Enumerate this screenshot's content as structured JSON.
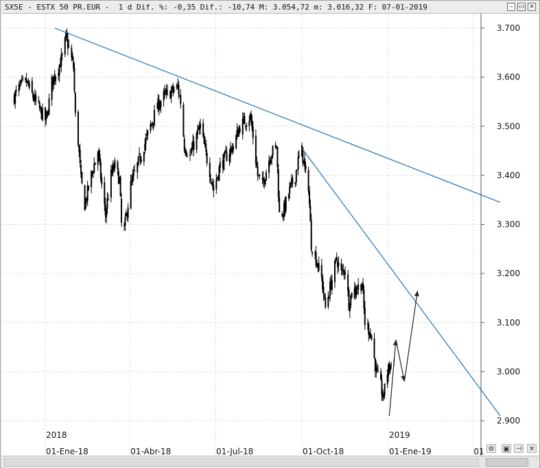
{
  "window": {
    "title": "SX5E - ESTX 50 PR.EUR -  1 d Dif. %: -0,35 Dif.: -10,74 M: 3.054,72 m: 3.016,32 F: 07-01-2019",
    "buttons": {
      "minimize": "–",
      "restore": "▭",
      "close": "×"
    }
  },
  "icons": {
    "settings": "gear-icon",
    "save": "save-icon",
    "pin": "pin-icon",
    "close_chart": "close-icon"
  },
  "colors": {
    "candle": "#000000",
    "trendline": "#1f6fb5",
    "arrows": "#222222",
    "grid": "#d0d0d0",
    "background": "#ffffff"
  },
  "chart_data": {
    "type": "candlestick",
    "symbol": "SX5E - ESTX 50 PR.EUR",
    "interval": "1 d",
    "ylim": [
      2880,
      3720
    ],
    "y_ticks": [
      "3.700",
      "3.600",
      "3.500",
      "3.400",
      "3.300",
      "3.200",
      "3.100",
      "3.000",
      "2.900"
    ],
    "y_tick_values": [
      3700,
      3600,
      3500,
      3400,
      3300,
      3200,
      3100,
      3000,
      2900
    ],
    "year_labels": [
      "2018",
      "2019"
    ],
    "x_ticks": [
      "01-Ene-18",
      "01-Abr-18",
      "01-Jul-18",
      "01-Oct-18",
      "01-Ene-19",
      "01"
    ],
    "grid": true,
    "close_path": [
      [
        "2017-11-29",
        3560
      ],
      [
        "2017-12-05",
        3580
      ],
      [
        "2017-12-12",
        3590
      ],
      [
        "2017-12-19",
        3560
      ],
      [
        "2017-12-27",
        3530
      ],
      [
        "2018-01-02",
        3510
      ],
      [
        "2018-01-08",
        3590
      ],
      [
        "2018-01-15",
        3620
      ],
      [
        "2018-01-19",
        3640
      ],
      [
        "2018-01-23",
        3680
      ],
      [
        "2018-01-26",
        3660
      ],
      [
        "2018-01-31",
        3620
      ],
      [
        "2018-02-02",
        3520
      ],
      [
        "2018-02-05",
        3470
      ],
      [
        "2018-02-08",
        3390
      ],
      [
        "2018-02-12",
        3340
      ],
      [
        "2018-02-19",
        3400
      ],
      [
        "2018-02-26",
        3450
      ],
      [
        "2018-03-02",
        3380
      ],
      [
        "2018-03-06",
        3320
      ],
      [
        "2018-03-12",
        3400
      ],
      [
        "2018-03-16",
        3420
      ],
      [
        "2018-03-21",
        3390
      ],
      [
        "2018-03-23",
        3300
      ],
      [
        "2018-03-26",
        3290
      ],
      [
        "2018-04-02",
        3380
      ],
      [
        "2018-04-09",
        3420
      ],
      [
        "2018-04-16",
        3460
      ],
      [
        "2018-04-23",
        3500
      ],
      [
        "2018-04-30",
        3540
      ],
      [
        "2018-05-07",
        3560
      ],
      [
        "2018-05-15",
        3570
      ],
      [
        "2018-05-22",
        3580
      ],
      [
        "2018-05-25",
        3550
      ],
      [
        "2018-05-29",
        3460
      ],
      [
        "2018-06-04",
        3440
      ],
      [
        "2018-06-11",
        3480
      ],
      [
        "2018-06-15",
        3500
      ],
      [
        "2018-06-20",
        3450
      ],
      [
        "2018-06-26",
        3400
      ],
      [
        "2018-06-29",
        3370
      ],
      [
        "2018-07-06",
        3420
      ],
      [
        "2018-07-13",
        3440
      ],
      [
        "2018-07-20",
        3460
      ],
      [
        "2018-07-27",
        3500
      ],
      [
        "2018-08-01",
        3510
      ],
      [
        "2018-08-07",
        3520
      ],
      [
        "2018-08-10",
        3480
      ],
      [
        "2018-08-15",
        3400
      ],
      [
        "2018-08-20",
        3380
      ],
      [
        "2018-08-28",
        3440
      ],
      [
        "2018-09-04",
        3460
      ],
      [
        "2018-09-07",
        3320
      ],
      [
        "2018-09-12",
        3330
      ],
      [
        "2018-09-18",
        3370
      ],
      [
        "2018-09-24",
        3400
      ],
      [
        "2018-09-27",
        3430
      ],
      [
        "2018-10-01",
        3450
      ],
      [
        "2018-10-05",
        3400
      ],
      [
        "2018-10-08",
        3380
      ],
      [
        "2018-10-11",
        3260
      ],
      [
        "2018-10-16",
        3230
      ],
      [
        "2018-10-22",
        3190
      ],
      [
        "2018-10-26",
        3130
      ],
      [
        "2018-11-01",
        3180
      ],
      [
        "2018-11-07",
        3230
      ],
      [
        "2018-11-12",
        3200
      ],
      [
        "2018-11-16",
        3210
      ],
      [
        "2018-11-20",
        3140
      ],
      [
        "2018-11-23",
        3160
      ],
      [
        "2018-11-28",
        3170
      ],
      [
        "2018-12-04",
        3180
      ],
      [
        "2018-12-07",
        3100
      ],
      [
        "2018-12-13",
        3080
      ],
      [
        "2018-12-19",
        3000
      ],
      [
        "2018-12-24",
        2970
      ],
      [
        "2018-12-27",
        2940
      ],
      [
        "2018-12-28",
        2980
      ],
      [
        "2019-01-02",
        3010
      ],
      [
        "2019-01-07",
        3030
      ]
    ],
    "trendlines": [
      {
        "from": [
          "2018-01-11",
          3700
        ],
        "to": [
          "2019-04-30",
          3345
        ]
      },
      {
        "from": [
          "2018-10-01",
          3455
        ],
        "to": [
          "2019-04-30",
          2910
        ]
      }
    ],
    "projection_arrows": [
      {
        "from": [
          "2019-01-02",
          2910
        ],
        "to": [
          "2019-01-09",
          3065
        ]
      },
      {
        "from": [
          "2019-01-09",
          3065
        ],
        "to": [
          "2019-01-18",
          2980
        ]
      },
      {
        "from": [
          "2019-01-18",
          2980
        ],
        "to": [
          "2019-02-01",
          3165
        ]
      }
    ]
  }
}
